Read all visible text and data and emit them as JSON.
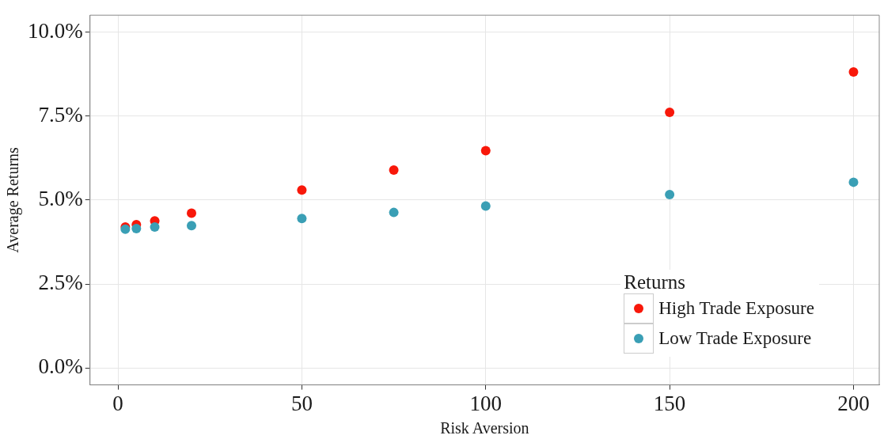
{
  "chart_data": {
    "type": "scatter",
    "xlabel": "Risk Aversion",
    "ylabel": "Average Returns",
    "legend_title": "Returns",
    "x": [
      2,
      5,
      10,
      20,
      50,
      75,
      100,
      150,
      200
    ],
    "series": [
      {
        "name": "High Trade Exposure",
        "color": "#f8180a",
        "values": [
          4.2,
          4.27,
          4.38,
          4.61,
          5.3,
          5.89,
          6.47,
          7.61,
          8.81
        ]
      },
      {
        "name": "Low Trade Exposure",
        "color": "#3a9fb5",
        "values": [
          4.13,
          4.15,
          4.2,
          4.24,
          4.45,
          4.63,
          4.82,
          5.16,
          5.53
        ]
      }
    ],
    "xlim": [
      -7.6,
      207
    ],
    "xticks": [
      0,
      50,
      100,
      150,
      200
    ],
    "ylim": [
      -0.5,
      10.5
    ],
    "yticks": [
      {
        "value": 0,
        "label": "0.0%"
      },
      {
        "value": 2.5,
        "label": "2.5%"
      },
      {
        "value": 5,
        "label": "5.0%"
      },
      {
        "value": 7.5,
        "label": "7.5%"
      },
      {
        "value": 10,
        "label": "10.0%"
      }
    ],
    "grid": true,
    "legend": "bottom right",
    "marker": "circle"
  }
}
